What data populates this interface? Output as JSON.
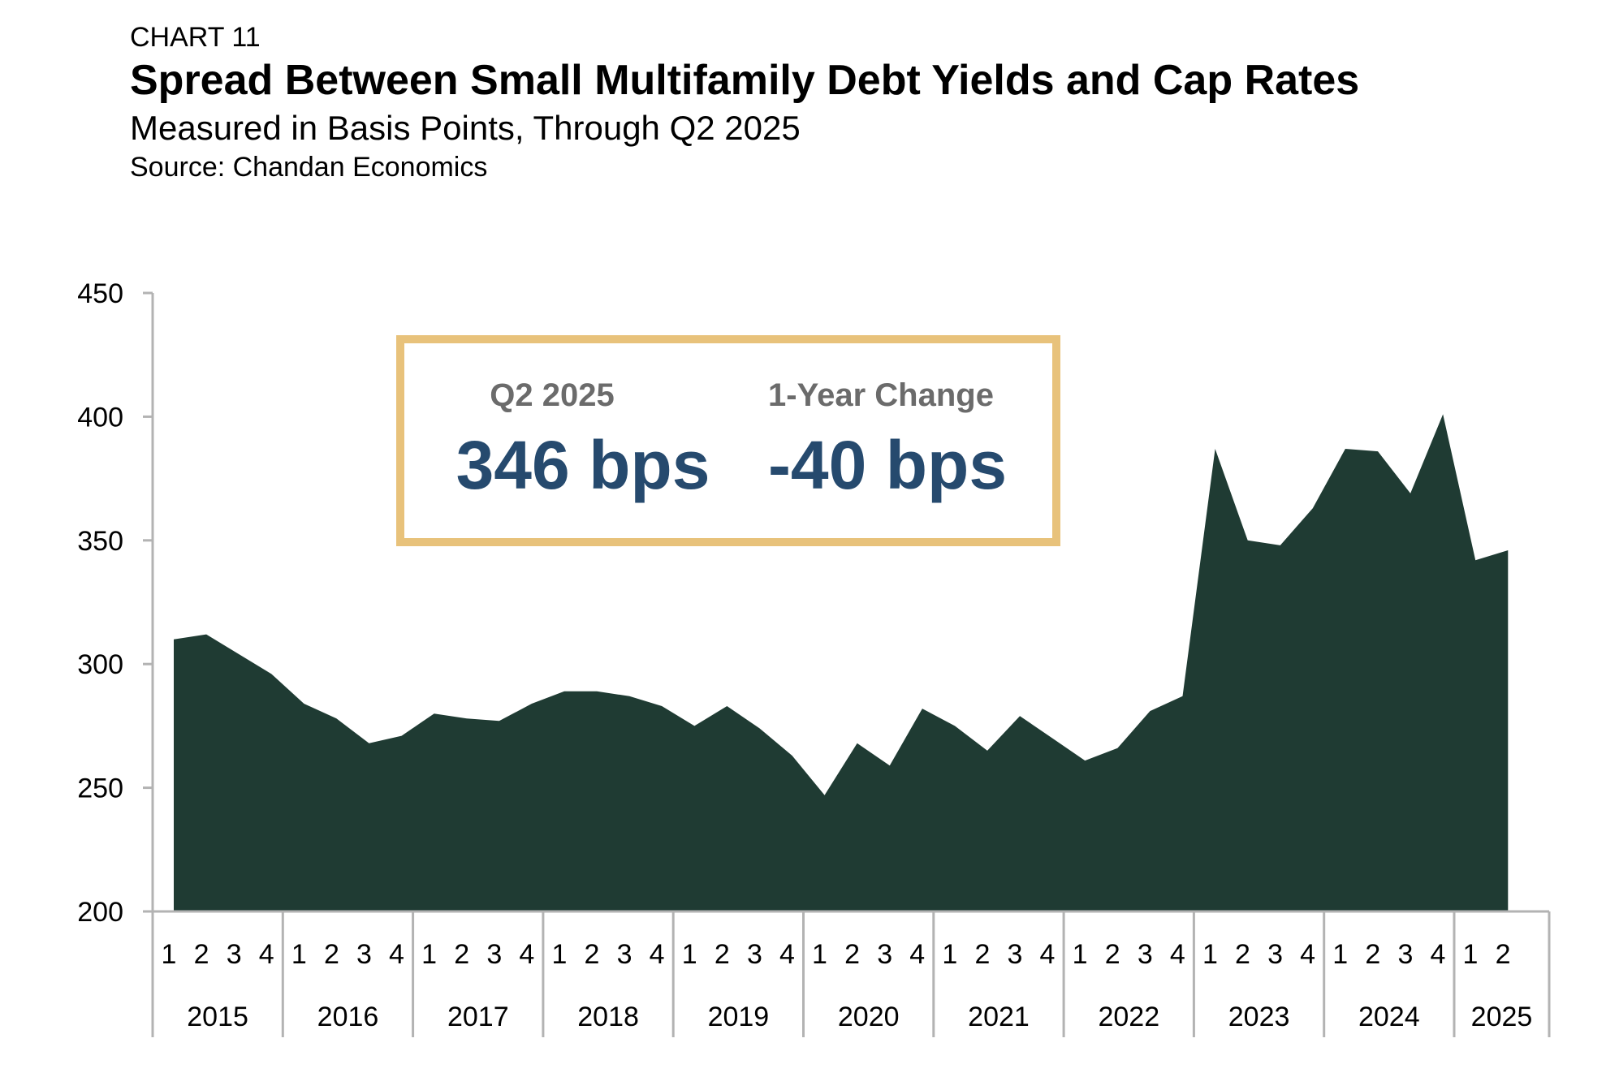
{
  "header": {
    "chart_label": "CHART 11",
    "title": "Spread Between Small Multifamily Debt Yields and Cap Rates",
    "subtitle": "Measured in Basis Points, Through Q2 2025",
    "source": "Source: Chandan Economics"
  },
  "callout": {
    "left_label": "Q2 2025",
    "left_value": "346 bps",
    "right_label": "1-Year Change",
    "right_value": "-40 bps"
  },
  "colors": {
    "area_fill": "#1f3b33",
    "axis": "#b3b3b3",
    "callout_border": "#e8c27b",
    "callout_value": "#264a6e"
  },
  "chart_data": {
    "type": "area",
    "title": "Spread Between Small Multifamily Debt Yields and Cap Rates",
    "ylim": [
      200,
      450
    ],
    "yticks": [
      200,
      250,
      300,
      350,
      400,
      450
    ],
    "grid": false,
    "years": [
      "2015",
      "2016",
      "2017",
      "2018",
      "2019",
      "2020",
      "2021",
      "2022",
      "2023",
      "2024",
      "2025"
    ],
    "quarters_per_year": [
      4,
      4,
      4,
      4,
      4,
      4,
      4,
      4,
      4,
      4,
      2
    ],
    "quarter_labels": [
      "1",
      "2",
      "3",
      "4"
    ],
    "series": [
      {
        "values": [
          310,
          312,
          304,
          296,
          284,
          278,
          268,
          271,
          280,
          278,
          277,
          284,
          289,
          289,
          287,
          283,
          275,
          283,
          274,
          263,
          247,
          268,
          259,
          282,
          275,
          265,
          279,
          270,
          261,
          266,
          281,
          287,
          387,
          350,
          348,
          363,
          387,
          386,
          369,
          401,
          342,
          346
        ]
      }
    ]
  }
}
